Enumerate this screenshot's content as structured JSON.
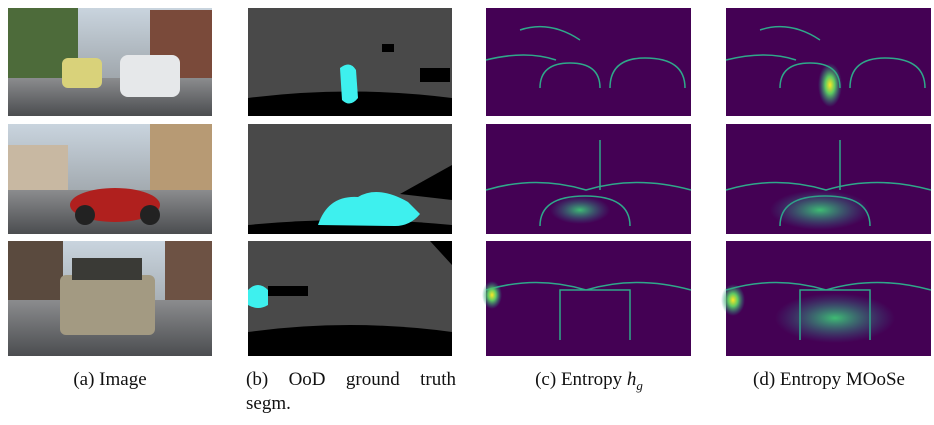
{
  "figure": {
    "captions": [
      {
        "label": "(a)",
        "text": "Image"
      },
      {
        "label": "(b)",
        "text": "OoD ground truth segm."
      },
      {
        "label": "(c)",
        "text": "Entropy",
        "math": "h",
        "sub": "g"
      },
      {
        "label": "(d)",
        "text": "Entropy MOoSe"
      }
    ]
  }
}
